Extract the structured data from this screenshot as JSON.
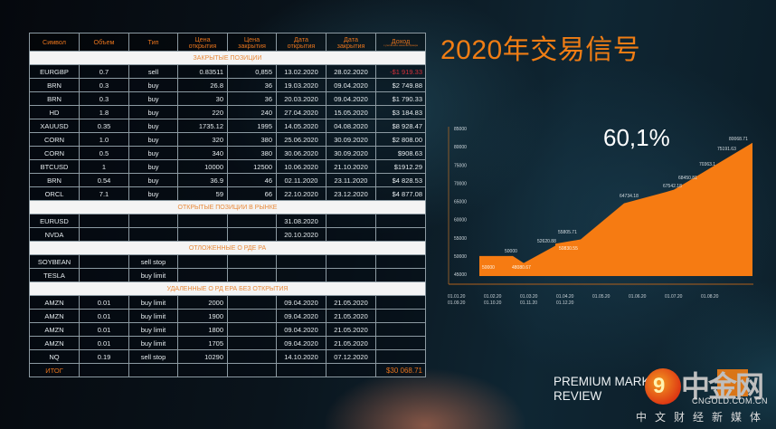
{
  "title": "2020年交易信号",
  "table": {
    "headers": [
      "Символ",
      "Объем",
      "Тип",
      "Цена открытия",
      "Цена закрытия",
      "Дата открытия",
      "Дата закрытия",
      "Доход"
    ],
    "header_lines": [
      [
        "Символ",
        ""
      ],
      [
        "Объем",
        ""
      ],
      [
        "Тип",
        ""
      ],
      [
        "Цена",
        "открытия"
      ],
      [
        "Цена",
        "закрытия"
      ],
      [
        "Дата",
        "открытия"
      ],
      [
        "Дата",
        "закрытия"
      ],
      [
        "Доход",
        ""
      ]
    ],
    "profit_note": "с учетом всех комиссий брокера",
    "sections": {
      "closed": "ЗАКРЫТЫЕ ПОЗИЦИИ",
      "open": "ОТКРЫТЫЕ ПОЗИЦИИ В РЫНКЕ",
      "pending": "ОТЛОЖЕННЫЕ О РДЕ РА",
      "deleted": "УДАЛЕННЫЕ О РД ЕРА БЕЗ ОТКРЫТИЯ"
    },
    "closed_rows": [
      [
        "EURGBP",
        "0.7",
        "sell",
        "0.83511",
        "0,855",
        "13.02.2020",
        "28.02.2020",
        "-$1 919.33"
      ],
      [
        "BRN",
        "0.3",
        "buy",
        "26.8",
        "36",
        "19.03.2020",
        "09.04.2020",
        "$2 749.88"
      ],
      [
        "BRN",
        "0.3",
        "buy",
        "30",
        "36",
        "20.03.2020",
        "09.04.2020",
        "$1 790.33"
      ],
      [
        "HD",
        "1.8",
        "buy",
        "220",
        "240",
        "27.04.2020",
        "15.05.2020",
        "$3 184.83"
      ],
      [
        "XAUUSD",
        "0.35",
        "buy",
        "1735.12",
        "1995",
        "14.05.2020",
        "04.08.2020",
        "$8 928.47"
      ],
      [
        "CORN",
        "1.0",
        "buy",
        "320",
        "380",
        "25.06.2020",
        "30.09.2020",
        "$2 808.00"
      ],
      [
        "CORN",
        "0.5",
        "buy",
        "340",
        "380",
        "30.06.2020",
        "30.09.2020",
        "$908.63"
      ],
      [
        "BTCUSD",
        "1",
        "buy",
        "10000",
        "12500",
        "10.06.2020",
        "21.10.2020",
        "$1912.29"
      ],
      [
        "BRN",
        "0.54",
        "buy",
        "36.9",
        "46",
        "02.11.2020",
        "23.11.2020",
        "$4 828.53"
      ],
      [
        "ORCL",
        "7.1",
        "buy",
        "59",
        "66",
        "22.10.2020",
        "23.12.2020",
        "$4 877.08"
      ]
    ],
    "open_rows": [
      [
        "EURUSD",
        "",
        "",
        "",
        "",
        "31.08.2020",
        "",
        ""
      ],
      [
        "NVDA",
        "",
        "",
        "",
        "",
        "20.10.2020",
        "",
        ""
      ]
    ],
    "pending_rows": [
      [
        "SOYBEAN",
        "",
        "sell stop",
        "",
        "",
        "",
        "",
        ""
      ],
      [
        "TESLA",
        "",
        "buy limit",
        "",
        "",
        "",
        "",
        ""
      ]
    ],
    "deleted_rows": [
      [
        "AMZN",
        "0.01",
        "buy limit",
        "2000",
        "",
        "09.04.2020",
        "21.05.2020",
        ""
      ],
      [
        "AMZN",
        "0.01",
        "buy limit",
        "1900",
        "",
        "09.04.2020",
        "21.05.2020",
        ""
      ],
      [
        "AMZN",
        "0.01",
        "buy limit",
        "1800",
        "",
        "09.04.2020",
        "21.05.2020",
        ""
      ],
      [
        "AMZN",
        "0.01",
        "buy limit",
        "1705",
        "",
        "09.04.2020",
        "21.05.2020",
        ""
      ],
      [
        "NQ",
        "0.19",
        "sell stop",
        "10290",
        "",
        "14.10.2020",
        "07.12.2020",
        ""
      ]
    ],
    "total_label": "ИТОГ",
    "total_value": "$30 068.71"
  },
  "chart_data": {
    "type": "area",
    "title": "",
    "highlight": "60,1%",
    "xlabel": "",
    "ylabel": "",
    "ylim": [
      45000,
      85000
    ],
    "y_ticks": [
      45000,
      50000,
      55000,
      60000,
      65000,
      70000,
      75000,
      80000,
      85000
    ],
    "x_tick_labels": [
      [
        "01.01.20",
        "01.09.20"
      ],
      [
        "01.02.20",
        "01.10.20"
      ],
      [
        "01.03.20",
        "01.11.20"
      ],
      [
        "01.04.20",
        "01.12.20"
      ],
      [
        "01.05.20",
        ""
      ],
      [
        "01.06.20",
        ""
      ],
      [
        "01.07.20",
        ""
      ],
      [
        "01.08.20",
        ""
      ]
    ],
    "points": [
      {
        "label": "50000",
        "value": 50000
      },
      {
        "label": "50000",
        "value": 50000
      },
      {
        "label": "48080.67",
        "value": 48080.67
      },
      {
        "label": "50830.55",
        "value": 50830.55
      },
      {
        "label": "52620.88",
        "value": 52620.88
      },
      {
        "label": "55805.71",
        "value": 55805.71
      },
      {
        "label": "64734.18",
        "value": 64734.18
      },
      {
        "label": "67542.18",
        "value": 67542.18
      },
      {
        "label": "68450.81",
        "value": 68450.81
      },
      {
        "label": "70363.1",
        "value": 70363.1
      },
      {
        "label": "75191.63",
        "value": 75191.63
      },
      {
        "label": "80068.71",
        "value": 80068.71
      }
    ],
    "fill_color": "#f67b12",
    "grid": false
  },
  "footer": {
    "line1": "PREMIUM MARKET",
    "line2": "REVIEW"
  },
  "watermark": {
    "brand_cn": "中金网",
    "domain": "CNGOLD.COM.CN",
    "tagline": "中文财经新媒体"
  }
}
